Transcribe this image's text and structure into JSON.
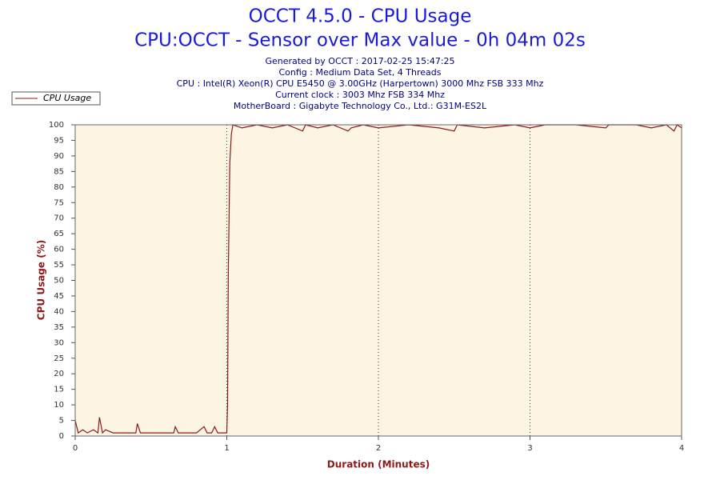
{
  "chart_data": {
    "type": "line",
    "title": "OCCT 4.5.0 - CPU Usage",
    "subtitle": "CPU:OCCT - Sensor over Max value - 0h 04m 02s",
    "annotations": [
      "Generated by OCCT : 2017-02-25 15:47:25",
      "Config : Medium Data Set, 4 Threads",
      "CPU : Intel(R) Xeon(R) CPU E5450 @ 3.00GHz (Harpertown) 3000 Mhz FSB 333 Mhz",
      "Current clock : 3003 Mhz FSB 334 Mhz",
      "MotherBoard : Gigabyte Technology Co., Ltd.: G31M-ES2L"
    ],
    "x_label": "Duration (Minutes)",
    "y_label": "CPU Usage (%)",
    "series": [
      {
        "name": "CPU Usage",
        "color": "#8b1a1a",
        "x": [
          0,
          0.02,
          0.05,
          0.08,
          0.12,
          0.15,
          0.16,
          0.18,
          0.2,
          0.25,
          0.3,
          0.35,
          0.4,
          0.41,
          0.43,
          0.5,
          0.6,
          0.65,
          0.66,
          0.68,
          0.75,
          0.8,
          0.85,
          0.87,
          0.9,
          0.92,
          0.94,
          1.0,
          1.005,
          1.01,
          1.02,
          1.03,
          1.04,
          1.1,
          1.2,
          1.3,
          1.4,
          1.5,
          1.52,
          1.6,
          1.7,
          1.8,
          1.82,
          1.9,
          2.0,
          2.2,
          2.4,
          2.5,
          2.52,
          2.7,
          2.9,
          3.0,
          3.1,
          3.3,
          3.5,
          3.52,
          3.7,
          3.8,
          3.9,
          3.95,
          3.97,
          4.0
        ],
        "values": [
          5,
          1,
          2,
          1,
          2,
          1,
          6,
          1,
          2,
          1,
          1,
          1,
          1,
          4,
          1,
          1,
          1,
          1,
          3,
          1,
          1,
          1,
          3,
          1,
          1,
          3,
          1,
          1,
          10,
          53,
          88,
          97,
          100,
          99,
          100,
          99,
          100,
          98,
          100,
          99,
          100,
          98,
          99,
          100,
          99,
          100,
          99,
          98,
          100,
          99,
          100,
          99,
          100,
          100,
          99,
          100,
          100,
          99,
          100,
          98,
          100,
          99
        ]
      }
    ],
    "xlim": [
      0,
      4
    ],
    "xticks": [
      0,
      1,
      2,
      3,
      4
    ],
    "ylim": [
      0,
      100
    ],
    "yticks": [
      0,
      5,
      10,
      15,
      20,
      25,
      30,
      35,
      40,
      45,
      50,
      55,
      60,
      65,
      70,
      75,
      80,
      85,
      90,
      95,
      100
    ],
    "grid": "x"
  }
}
